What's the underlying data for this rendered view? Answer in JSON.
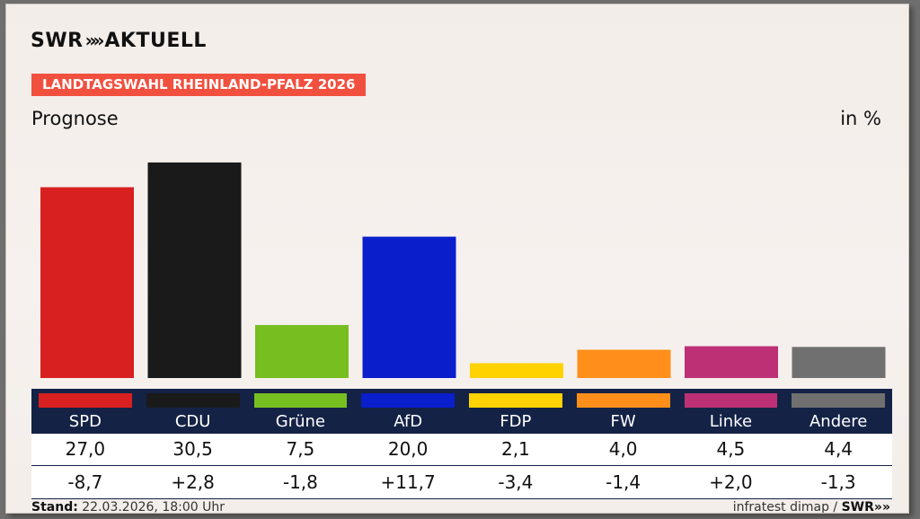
{
  "brand": {
    "logo_text": "SWR",
    "logo_suffix": "AKTUELL",
    "chevrons": "»"
  },
  "banner": "LANDTAGSWAHL RHEINLAND-PFALZ 2026",
  "subtitle": "Prognose",
  "unit": "in %",
  "footer": {
    "stand_label": "Stand:",
    "stand_value": "22.03.2026, 18:00 Uhr",
    "source": "infratest dimap /",
    "source_logo": "SWR",
    "source_chev": "»"
  },
  "chart_data": {
    "type": "bar",
    "title": "Prognose",
    "ylabel": "in %",
    "categories": [
      "SPD",
      "CDU",
      "Grüne",
      "AfD",
      "FDP",
      "FW",
      "Linke",
      "Andere"
    ],
    "values": [
      27.0,
      30.5,
      7.5,
      20.0,
      2.1,
      4.0,
      4.5,
      4.4
    ],
    "value_labels": [
      "27,0",
      "30,5",
      "7,5",
      "20,0",
      "2,1",
      "4,0",
      "4,5",
      "4,4"
    ],
    "changes": [
      -8.7,
      2.8,
      -1.8,
      11.7,
      -3.4,
      -1.4,
      2.0,
      -1.3
    ],
    "change_labels": [
      "-8,7",
      "+2,8",
      "-1,8",
      "+11,7",
      "-3,4",
      "-1,4",
      "+2,0",
      "-1,3"
    ],
    "colors": [
      "#d92020",
      "#1a1a1a",
      "#77be21",
      "#0a1ecc",
      "#ffd200",
      "#ff8f1a",
      "#be3075",
      "#707070"
    ],
    "ylim": [
      0,
      31
    ]
  }
}
